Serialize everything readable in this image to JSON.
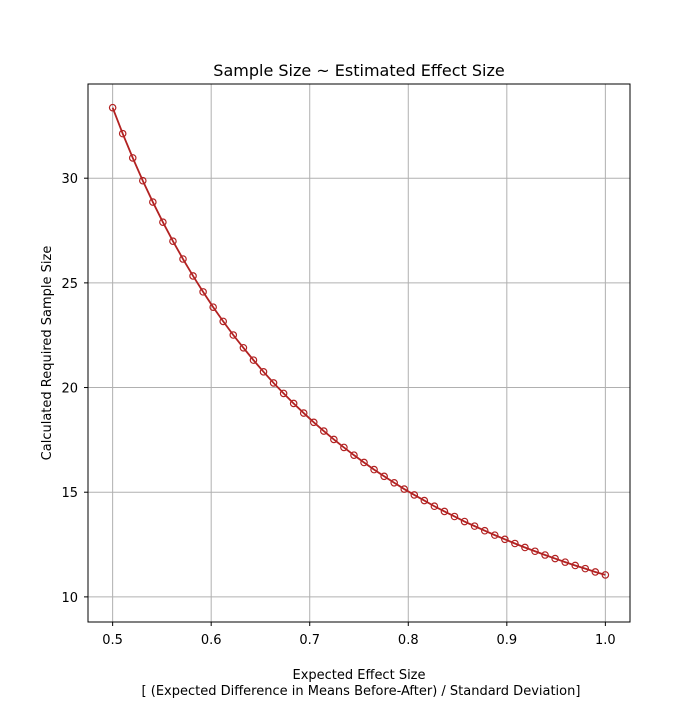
{
  "chart_data": {
    "type": "line",
    "title": "Sample Size ~ Estimated Effect Size",
    "xlabel_line1": "Expected Effect Size",
    "xlabel_line2": "[ (Expected Difference in Means Before-After) / Standard Deviation]",
    "ylabel": "Calculated Required Sample Size",
    "xlim": [
      0.475,
      1.025
    ],
    "ylim": [
      8.8,
      34.5
    ],
    "xticks": [
      0.5,
      0.6,
      0.7,
      0.8,
      0.9,
      1.0
    ],
    "xtick_labels": [
      "0.5",
      "0.6",
      "0.7",
      "0.8",
      "0.9",
      "1.0"
    ],
    "yticks": [
      10,
      15,
      20,
      25,
      30
    ],
    "ytick_labels": [
      "10",
      "15",
      "20",
      "25",
      "30"
    ],
    "grid": true,
    "series": [
      {
        "color": "#b22222",
        "marker": "hollow-circle",
        "x": [
          0.5,
          0.5102,
          0.5204,
          0.5306,
          0.5408,
          0.551,
          0.5612,
          0.5714,
          0.5816,
          0.5918,
          0.602,
          0.6122,
          0.6224,
          0.6327,
          0.6429,
          0.6531,
          0.6633,
          0.6735,
          0.6837,
          0.6939,
          0.7041,
          0.7143,
          0.7245,
          0.7347,
          0.7449,
          0.7551,
          0.7653,
          0.7755,
          0.7857,
          0.7959,
          0.8061,
          0.8163,
          0.8265,
          0.8367,
          0.8469,
          0.8571,
          0.8673,
          0.8776,
          0.8878,
          0.898,
          0.9082,
          0.9184,
          0.9286,
          0.9388,
          0.949,
          0.9592,
          0.9694,
          0.9796,
          0.9898,
          1.0
        ],
        "y": [
          33.37,
          32.13,
          30.97,
          29.88,
          28.86,
          27.9,
          26.99,
          26.14,
          25.33,
          24.57,
          23.84,
          23.16,
          22.51,
          21.9,
          21.31,
          20.75,
          20.22,
          19.72,
          19.24,
          18.78,
          18.34,
          17.92,
          17.52,
          17.14,
          16.77,
          16.42,
          16.08,
          15.76,
          15.45,
          15.15,
          14.87,
          14.6,
          14.33,
          14.08,
          13.84,
          13.6,
          13.38,
          13.16,
          12.95,
          12.75,
          12.55,
          12.36,
          12.18,
          12.0,
          11.83,
          11.66,
          11.5,
          11.35,
          11.19,
          11.05
        ]
      }
    ]
  }
}
